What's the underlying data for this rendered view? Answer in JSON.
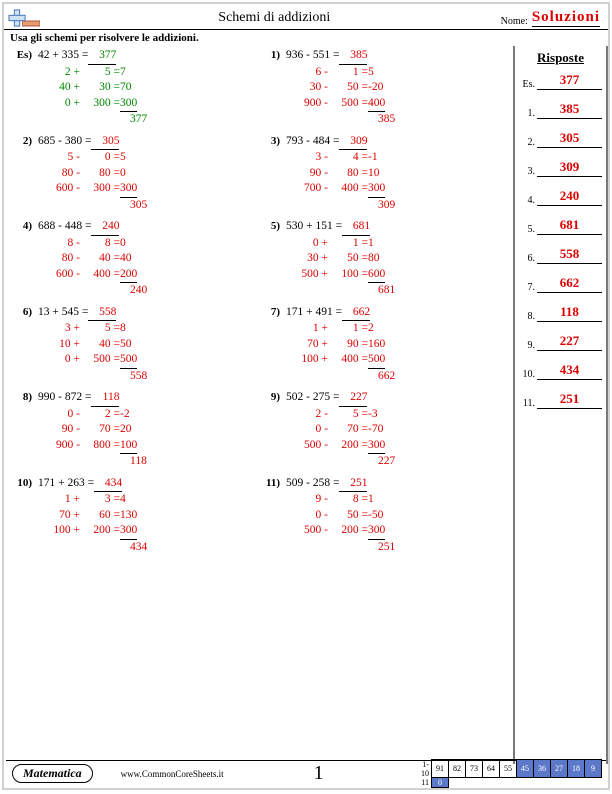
{
  "header": {
    "title": "Schemi di addizioni",
    "name_label": "Nome:",
    "solutions": "Soluzioni"
  },
  "instruction": "Usa gli schemi per risolvere le addizioni.",
  "answers_heading": "Risposte",
  "answers": [
    {
      "n": "Es.",
      "v": "377"
    },
    {
      "n": "1.",
      "v": "385"
    },
    {
      "n": "2.",
      "v": "305"
    },
    {
      "n": "3.",
      "v": "309"
    },
    {
      "n": "4.",
      "v": "240"
    },
    {
      "n": "5.",
      "v": "681"
    },
    {
      "n": "6.",
      "v": "558"
    },
    {
      "n": "7.",
      "v": "662"
    },
    {
      "n": "8.",
      "v": "118"
    },
    {
      "n": "9.",
      "v": "227"
    },
    {
      "n": "10.",
      "v": "434"
    },
    {
      "n": "11.",
      "v": "251"
    }
  ],
  "problems": [
    {
      "num": "Es)",
      "ex": true,
      "expr": "42 + 335 =",
      "ans": "377",
      "steps": [
        {
          "l": "2 +",
          "m": "5 =",
          "r": "7"
        },
        {
          "l": "40 +",
          "m": "30 =",
          "r": "70"
        },
        {
          "l": "0 +",
          "m": "300 =",
          "r": "300"
        }
      ],
      "tot": "377"
    },
    {
      "num": "1)",
      "expr": "936 - 551 =",
      "ans": "385",
      "steps": [
        {
          "l": "6 -",
          "m": "1 =",
          "r": "5"
        },
        {
          "l": "30 -",
          "m": "50 =",
          "r": "-20"
        },
        {
          "l": "900 -",
          "m": "500 =",
          "r": "400"
        }
      ],
      "tot": "385"
    },
    {
      "num": "2)",
      "expr": "685 - 380 =",
      "ans": "305",
      "steps": [
        {
          "l": "5 -",
          "m": "0 =",
          "r": "5"
        },
        {
          "l": "80 -",
          "m": "80 =",
          "r": "0"
        },
        {
          "l": "600 -",
          "m": "300 =",
          "r": "300"
        }
      ],
      "tot": "305"
    },
    {
      "num": "3)",
      "expr": "793 - 484 =",
      "ans": "309",
      "steps": [
        {
          "l": "3 -",
          "m": "4 =",
          "r": "-1"
        },
        {
          "l": "90 -",
          "m": "80 =",
          "r": "10"
        },
        {
          "l": "700 -",
          "m": "400 =",
          "r": "300"
        }
      ],
      "tot": "309"
    },
    {
      "num": "4)",
      "expr": "688 - 448 =",
      "ans": "240",
      "steps": [
        {
          "l": "8 -",
          "m": "8 =",
          "r": "0"
        },
        {
          "l": "80 -",
          "m": "40 =",
          "r": "40"
        },
        {
          "l": "600 -",
          "m": "400 =",
          "r": "200"
        }
      ],
      "tot": "240"
    },
    {
      "num": "5)",
      "expr": "530 + 151 =",
      "ans": "681",
      "steps": [
        {
          "l": "0 +",
          "m": "1 =",
          "r": "1"
        },
        {
          "l": "30 +",
          "m": "50 =",
          "r": "80"
        },
        {
          "l": "500 +",
          "m": "100 =",
          "r": "600"
        }
      ],
      "tot": "681"
    },
    {
      "num": "6)",
      "expr": "13 + 545 =",
      "ans": "558",
      "steps": [
        {
          "l": "3 +",
          "m": "5 =",
          "r": "8"
        },
        {
          "l": "10 +",
          "m": "40 =",
          "r": "50"
        },
        {
          "l": "0 +",
          "m": "500 =",
          "r": "500"
        }
      ],
      "tot": "558"
    },
    {
      "num": "7)",
      "expr": "171 + 491 =",
      "ans": "662",
      "steps": [
        {
          "l": "1 +",
          "m": "1 =",
          "r": "2"
        },
        {
          "l": "70 +",
          "m": "90 =",
          "r": "160"
        },
        {
          "l": "100 +",
          "m": "400 =",
          "r": "500"
        }
      ],
      "tot": "662"
    },
    {
      "num": "8)",
      "expr": "990 - 872 =",
      "ans": "118",
      "steps": [
        {
          "l": "0 -",
          "m": "2 =",
          "r": "-2"
        },
        {
          "l": "90 -",
          "m": "70 =",
          "r": "20"
        },
        {
          "l": "900 -",
          "m": "800 =",
          "r": "100"
        }
      ],
      "tot": "118"
    },
    {
      "num": "9)",
      "expr": "502 - 275 =",
      "ans": "227",
      "steps": [
        {
          "l": "2 -",
          "m": "5 =",
          "r": "-3"
        },
        {
          "l": "0 -",
          "m": "70 =",
          "r": "-70"
        },
        {
          "l": "500 -",
          "m": "200 =",
          "r": "300"
        }
      ],
      "tot": "227"
    },
    {
      "num": "10)",
      "expr": "171 + 263 =",
      "ans": "434",
      "steps": [
        {
          "l": "1 +",
          "m": "3 =",
          "r": "4"
        },
        {
          "l": "70 +",
          "m": "60 =",
          "r": "130"
        },
        {
          "l": "100 +",
          "m": "200 =",
          "r": "300"
        }
      ],
      "tot": "434"
    },
    {
      "num": "11)",
      "expr": "509 - 258 =",
      "ans": "251",
      "steps": [
        {
          "l": "9 -",
          "m": "8 =",
          "r": "1"
        },
        {
          "l": "0 -",
          "m": "50 =",
          "r": "-50"
        },
        {
          "l": "500 -",
          "m": "200 =",
          "r": "300"
        }
      ],
      "tot": "251"
    }
  ],
  "footer": {
    "brand": "Matematica",
    "url": "www.CommonCoreSheets.it",
    "page": "1",
    "score_rows": [
      {
        "label": "1-10",
        "cells": [
          {
            "v": "91"
          },
          {
            "v": "82"
          },
          {
            "v": "73"
          },
          {
            "v": "64"
          },
          {
            "v": "55"
          },
          {
            "v": "45",
            "s": 1
          },
          {
            "v": "36",
            "s": 1
          },
          {
            "v": "27",
            "s": 1
          },
          {
            "v": "18",
            "s": 1
          },
          {
            "v": "9",
            "s": 1
          }
        ]
      },
      {
        "label": "11",
        "cells": [
          {
            "v": "0",
            "s": 1
          }
        ]
      }
    ]
  },
  "colors": {
    "answer": "#d00000",
    "example": "#008800",
    "shade_bg": "#5b79c8"
  }
}
